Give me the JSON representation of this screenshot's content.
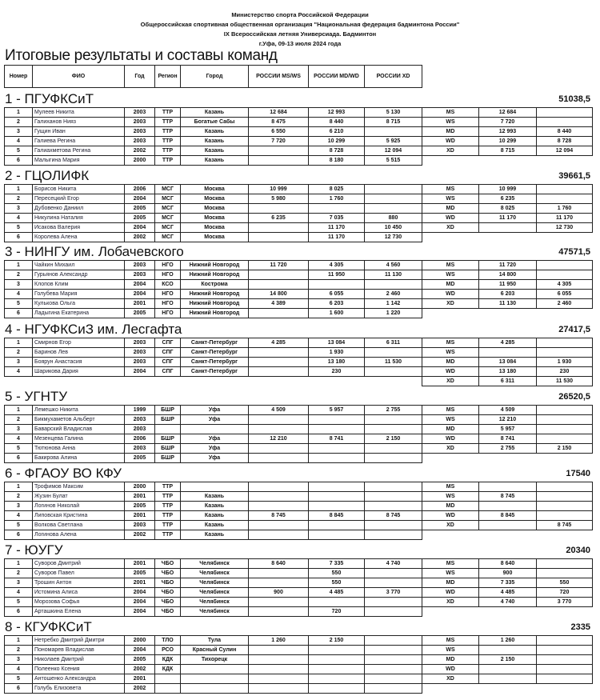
{
  "header": {
    "line1": "Министерство спорта Российской Федерации",
    "line2": "Общероссийская спортивная общественная организация \"Национальная федерация бадминтона России\"",
    "line3": "IX Всероссийская летняя Универсиада. Бадминтон",
    "line4": "г.Уфа, 09-13 июля 2024 года"
  },
  "title": "Итоговые результаты и составы команд",
  "columns": {
    "num": "Номер",
    "name": "ФИО",
    "year": "Год",
    "region": "Регион",
    "city": "Город",
    "msws": "РОССИИ MS/WS",
    "mdwd": "РОССИИ MD/WD",
    "xd": "РОССИИ XD"
  },
  "teams": [
    {
      "title": "1 - ПГУФКСиТ",
      "score": "51038,5",
      "players": [
        [
          "1",
          "Мулеев Никита",
          "2003",
          "ТТР",
          "Казань",
          "12 684",
          "12 993",
          "5 130"
        ],
        [
          "2",
          "Галиханов Нияз",
          "2003",
          "ТТР",
          "Богатые Сабы",
          "8 475",
          "8 440",
          "8 715"
        ],
        [
          "3",
          "Гущин Иван",
          "2003",
          "ТТР",
          "Казань",
          "6 550",
          "6 210",
          ""
        ],
        [
          "4",
          "Галиева Регина",
          "2003",
          "ТТР",
          "Казань",
          "7 720",
          "10 299",
          "5 925"
        ],
        [
          "5",
          "Галиахметова Регина",
          "2002",
          "ТТР",
          "Казань",
          "",
          "8 728",
          "12 094"
        ],
        [
          "6",
          "Малыгина Мария",
          "2000",
          "ТТР",
          "Казань",
          "",
          "8 180",
          "5 515"
        ]
      ],
      "categories": [
        [
          "MS",
          "12 684",
          ""
        ],
        [
          "WS",
          "7 720",
          ""
        ],
        [
          "MD",
          "12 993",
          "8 440"
        ],
        [
          "WD",
          "10 299",
          "8 728"
        ],
        [
          "XD",
          "8 715",
          "12 094"
        ]
      ]
    },
    {
      "title": "2 - ГЦОЛИФК",
      "score": "39661,5",
      "players": [
        [
          "1",
          "Борисов Никита",
          "2006",
          "МСГ",
          "Москва",
          "10 999",
          "8 025",
          ""
        ],
        [
          "2",
          "Пересецкий Егор",
          "2004",
          "МСГ",
          "Москва",
          "5 980",
          "1 760",
          ""
        ],
        [
          "3",
          "Дубовенко Даниил",
          "2005",
          "МСГ",
          "Москва",
          "",
          "",
          ""
        ],
        [
          "4",
          "Никулина Наталия",
          "2005",
          "МСГ",
          "Москва",
          "6 235",
          "7 035",
          "880"
        ],
        [
          "5",
          "Исакова Валерия",
          "2004",
          "МСГ",
          "Москва",
          "",
          "11 170",
          "10 450"
        ],
        [
          "6",
          "Королева Алена",
          "2002",
          "МСГ",
          "Москва",
          "",
          "11 170",
          "12 730"
        ]
      ],
      "categories": [
        [
          "MS",
          "10 999",
          ""
        ],
        [
          "WS",
          "6 235",
          ""
        ],
        [
          "MD",
          "8 025",
          "1 760"
        ],
        [
          "WD",
          "11 170",
          "11 170"
        ],
        [
          "XD",
          "",
          "12 730"
        ]
      ]
    },
    {
      "title": "3 - НИНГУ им. Лобачевского",
      "score": "47571,5",
      "players": [
        [
          "1",
          "Чайкин Михаил",
          "2003",
          "НГО",
          "Нижний Новгород",
          "11 720",
          "4 305",
          "4 560"
        ],
        [
          "2",
          "Гурьянов Александр",
          "2003",
          "НГО",
          "Нижний Новгород",
          "",
          "11 950",
          "11 130"
        ],
        [
          "3",
          "Клопов Клим",
          "2004",
          "КСО",
          "Кострома",
          "",
          "",
          ""
        ],
        [
          "4",
          "Голубева Мария",
          "2004",
          "НГО",
          "Нижний Новгород",
          "14 800",
          "6 055",
          "2 460"
        ],
        [
          "5",
          "Кулькова Ольга",
          "2001",
          "НГО",
          "Нижний Новгород",
          "4 389",
          "6 203",
          "1 142"
        ],
        [
          "6",
          "Ладыгина Екатерина",
          "2005",
          "НГО",
          "Нижний Новгород",
          "",
          "1 600",
          "1 220"
        ]
      ],
      "categories": [
        [
          "MS",
          "11 720",
          ""
        ],
        [
          "WS",
          "14 800",
          ""
        ],
        [
          "MD",
          "11 950",
          "4 305"
        ],
        [
          "WD",
          "6 203",
          "6 055"
        ],
        [
          "XD",
          "11 130",
          "2 460"
        ]
      ]
    },
    {
      "title": "4 - НГУФКСиЗ им. Лесгафта",
      "score": "27417,5",
      "players": [
        [
          "1",
          "Смирнов Егор",
          "2003",
          "СПГ",
          "Санкт-Петербург",
          "4 285",
          "13 084",
          "6 311"
        ],
        [
          "2",
          "Баринов Лев",
          "2003",
          "СПГ",
          "Санкт-Петербург",
          "",
          "1 930",
          ""
        ],
        [
          "3",
          "Боярун Анастасия",
          "2003",
          "СПГ",
          "Санкт-Петербург",
          "",
          "13 180",
          "11 530"
        ],
        [
          "4",
          "Шарикова Дария",
          "2004",
          "СПГ",
          "Санкт-Петербург",
          "",
          "230",
          ""
        ]
      ],
      "categories": [
        [
          "MS",
          "4 285",
          ""
        ],
        [
          "WS",
          "",
          ""
        ],
        [
          "MD",
          "13 084",
          "1 930"
        ],
        [
          "WD",
          "13 180",
          "230"
        ],
        [
          "XD",
          "6 311",
          "11 530"
        ]
      ]
    },
    {
      "title": "5 - УГНТУ",
      "score": "26520,5",
      "players": [
        [
          "1",
          "Лемешко Никита",
          "1999",
          "БШР",
          "Уфа",
          "4 509",
          "5 957",
          "2 755"
        ],
        [
          "2",
          "Бикмухаметов Альберт",
          "2003",
          "БШР",
          "Уфа",
          "",
          "",
          ""
        ],
        [
          "3",
          "Баварский Владислав",
          "2003",
          "",
          "",
          "",
          "",
          ""
        ],
        [
          "4",
          "Мезенцева Галина",
          "2006",
          "БШР",
          "Уфа",
          "12 210",
          "8 741",
          "2 150"
        ],
        [
          "5",
          "Тютюнова Анна",
          "2003",
          "БШР",
          "Уфа",
          "",
          "",
          ""
        ],
        [
          "6",
          "Бакирова Алина",
          "2005",
          "БШР",
          "Уфа",
          "",
          "",
          ""
        ]
      ],
      "categories": [
        [
          "MS",
          "4 509",
          ""
        ],
        [
          "WS",
          "12 210",
          ""
        ],
        [
          "MD",
          "5 957",
          ""
        ],
        [
          "WD",
          "8 741",
          ""
        ],
        [
          "XD",
          "2 755",
          "2 150"
        ]
      ]
    },
    {
      "title": "6 - ФГАОУ ВО КФУ",
      "score": "17540",
      "players": [
        [
          "1",
          "Трофимов Максим",
          "2000",
          "ТТР",
          "",
          "",
          "",
          ""
        ],
        [
          "2",
          "Жузин Булат",
          "2001",
          "ТТР",
          "Казань",
          "",
          "",
          ""
        ],
        [
          "3",
          "Логинов Николай",
          "2005",
          "ТТР",
          "Казань",
          "",
          "",
          ""
        ],
        [
          "4",
          "Липовская Кристина",
          "2001",
          "ТТР",
          "Казань",
          "8 745",
          "8 845",
          "8 745"
        ],
        [
          "5",
          "Волкова Светлана",
          "2003",
          "ТТР",
          "Казань",
          "",
          "",
          ""
        ],
        [
          "6",
          "Логинова Алена",
          "2002",
          "ТТР",
          "Казань",
          "",
          "",
          ""
        ]
      ],
      "categories": [
        [
          "MS",
          "",
          ""
        ],
        [
          "WS",
          "8 745",
          ""
        ],
        [
          "MD",
          "",
          ""
        ],
        [
          "WD",
          "8 845",
          ""
        ],
        [
          "XD",
          "",
          "8 745"
        ]
      ]
    },
    {
      "title": "7 - ЮУГУ",
      "score": "20340",
      "players": [
        [
          "1",
          "Суворов Дмитрий",
          "2001",
          "ЧБО",
          "Челябинск",
          "8 640",
          "7 335",
          "4 740"
        ],
        [
          "2",
          "Суворов Павел",
          "2005",
          "ЧБО",
          "Челябинск",
          "",
          "550",
          ""
        ],
        [
          "3",
          "Трошин Антон",
          "2001",
          "ЧБО",
          "Челябинск",
          "",
          "550",
          ""
        ],
        [
          "4",
          "Истомина Алиса",
          "2004",
          "ЧБО",
          "Челябинск",
          "900",
          "4 485",
          "3 770"
        ],
        [
          "5",
          "Морозова Софья",
          "2004",
          "ЧБО",
          "Челябинск",
          "",
          "",
          ""
        ],
        [
          "6",
          "Арташкина Елена",
          "2004",
          "ЧБО",
          "Челябинск",
          "",
          "720",
          ""
        ]
      ],
      "categories": [
        [
          "MS",
          "8 640",
          ""
        ],
        [
          "WS",
          "900",
          ""
        ],
        [
          "MD",
          "7 335",
          "550"
        ],
        [
          "WD",
          "4 485",
          "720"
        ],
        [
          "XD",
          "4 740",
          "3 770"
        ]
      ]
    },
    {
      "title": "8 - КГУФКСиТ",
      "score": "2335",
      "players": [
        [
          "1",
          "Нетребко Дмитрий Дмитри",
          "2000",
          "ТЛО",
          "Тула",
          "1 260",
          "2 150",
          ""
        ],
        [
          "2",
          "Пономарев Владислав",
          "2004",
          "РСО",
          "Красный Сулин",
          "",
          "",
          ""
        ],
        [
          "3",
          "Николаев Дмитрий",
          "2005",
          "КДК",
          "Тихорецк",
          "",
          "",
          ""
        ],
        [
          "4",
          "Полеенко Ксения",
          "2002",
          "КДК",
          "",
          "",
          "",
          ""
        ],
        [
          "5",
          "Антошенко Александра",
          "2001",
          "",
          "",
          "",
          "",
          ""
        ],
        [
          "6",
          "Голубь Елизовета",
          "2002",
          "",
          "",
          "",
          "",
          ""
        ]
      ],
      "categories": [
        [
          "MS",
          "1 260",
          ""
        ],
        [
          "WS",
          "",
          ""
        ],
        [
          "MD",
          "2 150",
          ""
        ],
        [
          "WD",
          "",
          ""
        ],
        [
          "XD",
          "",
          ""
        ]
      ]
    }
  ]
}
